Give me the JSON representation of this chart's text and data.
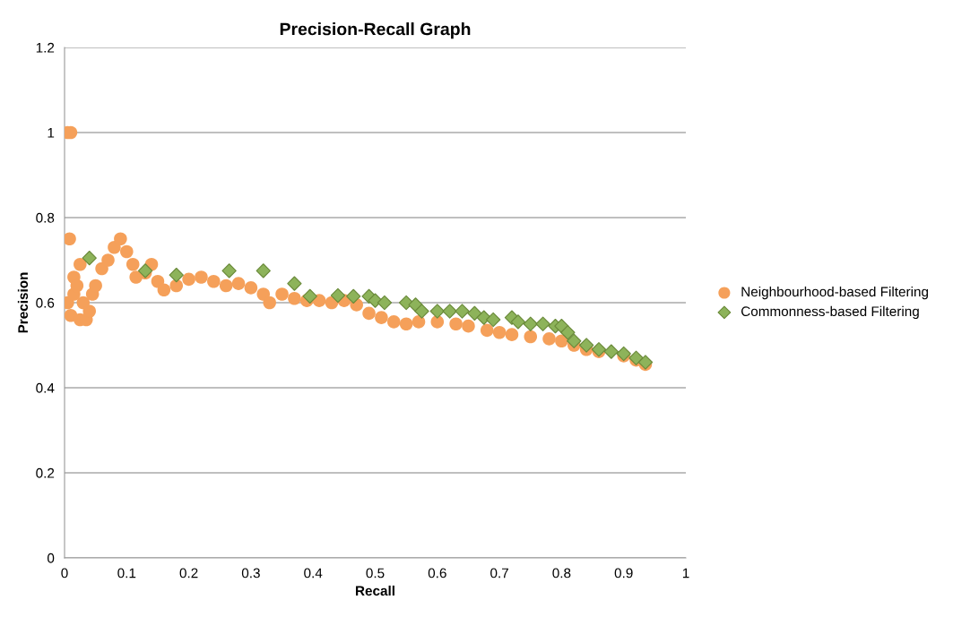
{
  "chart_data": {
    "type": "scatter",
    "title": "Precision-Recall Graph",
    "xlabel": "Recall",
    "ylabel": "Precision",
    "xlim": [
      0,
      1
    ],
    "ylim": [
      0,
      1.2
    ],
    "xticks": [
      0,
      0.1,
      0.2,
      0.3,
      0.4,
      0.5,
      0.6,
      0.7,
      0.8,
      0.9,
      1
    ],
    "yticks": [
      0,
      0.2,
      0.4,
      0.6,
      0.8,
      1,
      1.2
    ],
    "grid": "y",
    "legend": "right",
    "series": [
      {
        "name": "Neighbourhood-based Filtering",
        "color": "#f5a05a",
        "marker": "circle",
        "x": [
          0.005,
          0.01,
          0.008,
          0.005,
          0.01,
          0.015,
          0.015,
          0.02,
          0.025,
          0.025,
          0.03,
          0.035,
          0.04,
          0.045,
          0.05,
          0.06,
          0.07,
          0.08,
          0.09,
          0.1,
          0.11,
          0.115,
          0.13,
          0.14,
          0.15,
          0.16,
          0.18,
          0.2,
          0.22,
          0.24,
          0.26,
          0.28,
          0.3,
          0.32,
          0.33,
          0.35,
          0.37,
          0.39,
          0.41,
          0.43,
          0.45,
          0.47,
          0.49,
          0.51,
          0.53,
          0.55,
          0.57,
          0.6,
          0.63,
          0.65,
          0.68,
          0.7,
          0.72,
          0.75,
          0.78,
          0.8,
          0.82,
          0.84,
          0.86,
          0.88,
          0.9,
          0.92,
          0.935
        ],
        "values": [
          1.0,
          1.0,
          0.75,
          0.6,
          0.57,
          0.62,
          0.66,
          0.64,
          0.69,
          0.56,
          0.6,
          0.56,
          0.58,
          0.62,
          0.64,
          0.68,
          0.7,
          0.73,
          0.75,
          0.72,
          0.69,
          0.66,
          0.67,
          0.69,
          0.65,
          0.63,
          0.64,
          0.655,
          0.66,
          0.65,
          0.64,
          0.645,
          0.635,
          0.62,
          0.6,
          0.62,
          0.61,
          0.605,
          0.605,
          0.6,
          0.605,
          0.595,
          0.575,
          0.565,
          0.555,
          0.55,
          0.555,
          0.555,
          0.55,
          0.545,
          0.535,
          0.53,
          0.525,
          0.52,
          0.515,
          0.51,
          0.5,
          0.49,
          0.485,
          null,
          0.475,
          0.465,
          0.455
        ]
      },
      {
        "name": "Commonness-based Filtering",
        "color": "#8db35a",
        "marker": "diamond",
        "x": [
          0.04,
          0.13,
          0.18,
          0.265,
          0.32,
          0.37,
          0.395,
          0.44,
          0.465,
          0.49,
          0.5,
          0.515,
          0.55,
          0.565,
          0.575,
          0.6,
          0.62,
          0.64,
          0.66,
          0.675,
          0.69,
          0.72,
          0.73,
          0.75,
          0.77,
          0.79,
          0.8,
          0.81,
          0.82,
          0.84,
          0.86,
          0.88,
          0.9,
          0.92,
          0.935
        ],
        "values": [
          0.705,
          0.675,
          0.665,
          0.675,
          0.675,
          0.645,
          0.615,
          0.617,
          0.615,
          0.615,
          0.605,
          0.6,
          0.6,
          0.595,
          0.58,
          0.58,
          0.58,
          0.58,
          0.575,
          0.565,
          0.56,
          0.565,
          0.555,
          0.55,
          0.55,
          0.545,
          0.545,
          0.53,
          0.51,
          0.5,
          0.49,
          0.485,
          0.48,
          0.47,
          0.46
        ]
      }
    ]
  }
}
